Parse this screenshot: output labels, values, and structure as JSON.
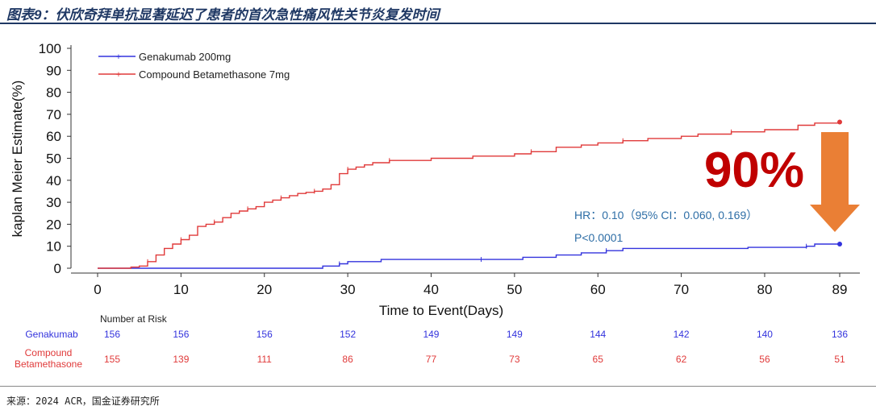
{
  "figure_title": "图表9：伏欣奇拜单抗显著延迟了患者的首次急性痛风性关节炎复发时间",
  "source": "来源：2024 ACR，国金证券研究所",
  "colors": {
    "genakumab": "#3333dd",
    "compound": "#e03a3a",
    "title": "#1f3864",
    "stat_text": "#2e6ea6",
    "big_pct": "#c00000",
    "arrow": "#e9782a"
  },
  "chart_data": {
    "type": "line",
    "title": "",
    "xlabel": "Time to Event(Days)",
    "ylabel": "kaplan Meier Estimate(%)",
    "xlim": [
      0,
      89
    ],
    "ylim": [
      0,
      100
    ],
    "x_ticks": [
      0,
      10,
      20,
      30,
      40,
      50,
      60,
      70,
      80,
      89
    ],
    "y_ticks": [
      0,
      10,
      20,
      30,
      40,
      50,
      60,
      70,
      80,
      90,
      100
    ],
    "legend": [
      "Genakumab 200mg",
      "Compound Betamethasone 7mg"
    ],
    "series": [
      {
        "name": "Genakumab 200mg",
        "x": [
          0,
          25,
          27,
          29,
          30,
          33,
          34,
          46,
          51,
          55,
          58,
          61,
          63,
          74,
          78,
          85,
          86,
          89
        ],
        "values": [
          0,
          0,
          1,
          2,
          3,
          3,
          4,
          4,
          5,
          6,
          7,
          8,
          9,
          9,
          9.5,
          10,
          11,
          11
        ]
      },
      {
        "name": "Compound Betamethasone 7mg",
        "x": [
          0,
          4,
          5,
          6,
          7,
          8,
          9,
          10,
          11,
          12,
          13,
          14,
          15,
          16,
          17,
          18,
          19,
          20,
          21,
          22,
          23,
          24,
          25,
          26,
          27,
          28,
          29,
          30,
          31,
          32,
          33,
          35,
          40,
          45,
          50,
          52,
          55,
          58,
          60,
          63,
          66,
          70,
          72,
          76,
          80,
          84,
          86,
          89
        ],
        "values": [
          0,
          0.5,
          1,
          3,
          6,
          9,
          11,
          13,
          15,
          19,
          20,
          21,
          23,
          25,
          26,
          27,
          28,
          30,
          31,
          32,
          33,
          34,
          34.5,
          35,
          36,
          38,
          43,
          45,
          46,
          47,
          48,
          49,
          50,
          51,
          52,
          53,
          55,
          56,
          57,
          58,
          59,
          60,
          61,
          62,
          63,
          65,
          66,
          66.5
        ]
      }
    ],
    "annotations": {
      "big_percent": "90%",
      "hr": "HR：0.10（95% CI：0.060, 0.169）",
      "p": "P<0.0001"
    },
    "risk_table": {
      "header": "Number at Risk",
      "rows": [
        {
          "label": "Genakumab",
          "values": [
            156,
            156,
            156,
            152,
            149,
            149,
            144,
            142,
            140,
            136
          ]
        },
        {
          "label_line1": "Compound",
          "label_line2": "Betamethasone",
          "values": [
            155,
            139,
            111,
            86,
            77,
            73,
            65,
            62,
            56,
            51
          ]
        }
      ]
    }
  }
}
